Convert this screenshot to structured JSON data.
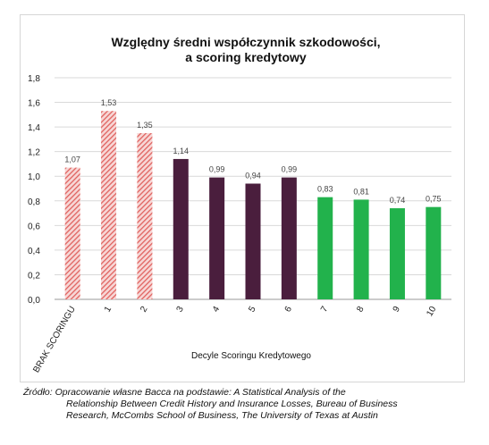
{
  "chart_data": {
    "type": "bar",
    "title_lines": [
      "Względny średni współczynnik szkodowości,",
      "a scoring kredytowy"
    ],
    "xlabel": "Decyle Scoringu Kredytowego",
    "ylabel": "",
    "ylim": [
      0,
      1.8
    ],
    "yticks": [
      "0,0",
      "0,2",
      "0,4",
      "0,6",
      "0,8",
      "1,0",
      "1,2",
      "1,4",
      "1,6",
      "1,8"
    ],
    "ytick_values": [
      0,
      0.2,
      0.4,
      0.6,
      0.8,
      1.0,
      1.2,
      1.4,
      1.6,
      1.8
    ],
    "grid": true,
    "categories": [
      "BRAK SCORINGU",
      "1",
      "2",
      "3",
      "4",
      "5",
      "6",
      "7",
      "8",
      "9",
      "10"
    ],
    "values": [
      1.07,
      1.53,
      1.35,
      1.14,
      0.99,
      0.94,
      0.99,
      0.83,
      0.81,
      0.74,
      0.75
    ],
    "value_labels": [
      "1,07",
      "1,53",
      "1,35",
      "1,14",
      "0,99",
      "0,94",
      "0,99",
      "0,83",
      "0,81",
      "0,74",
      "0,75"
    ],
    "bar_styles": [
      "hatch-red",
      "hatch-red",
      "hatch-red",
      "maroon",
      "maroon",
      "maroon",
      "maroon",
      "green",
      "green",
      "green",
      "green"
    ],
    "colors": {
      "hatch-red": "#e0625f",
      "maroon": "#4a1e3d",
      "green": "#22b24c",
      "grid": "#d9d9d9"
    }
  },
  "source": {
    "line1": "Źródło: Opracowanie własne Bacca na podstawie: A Statistical Analysis of the",
    "line2": "Relationship Between Credit History and Insurance Losses, Bureau of Business",
    "line3": "Research, McCombs School of Business, The University of Texas at Austin"
  }
}
